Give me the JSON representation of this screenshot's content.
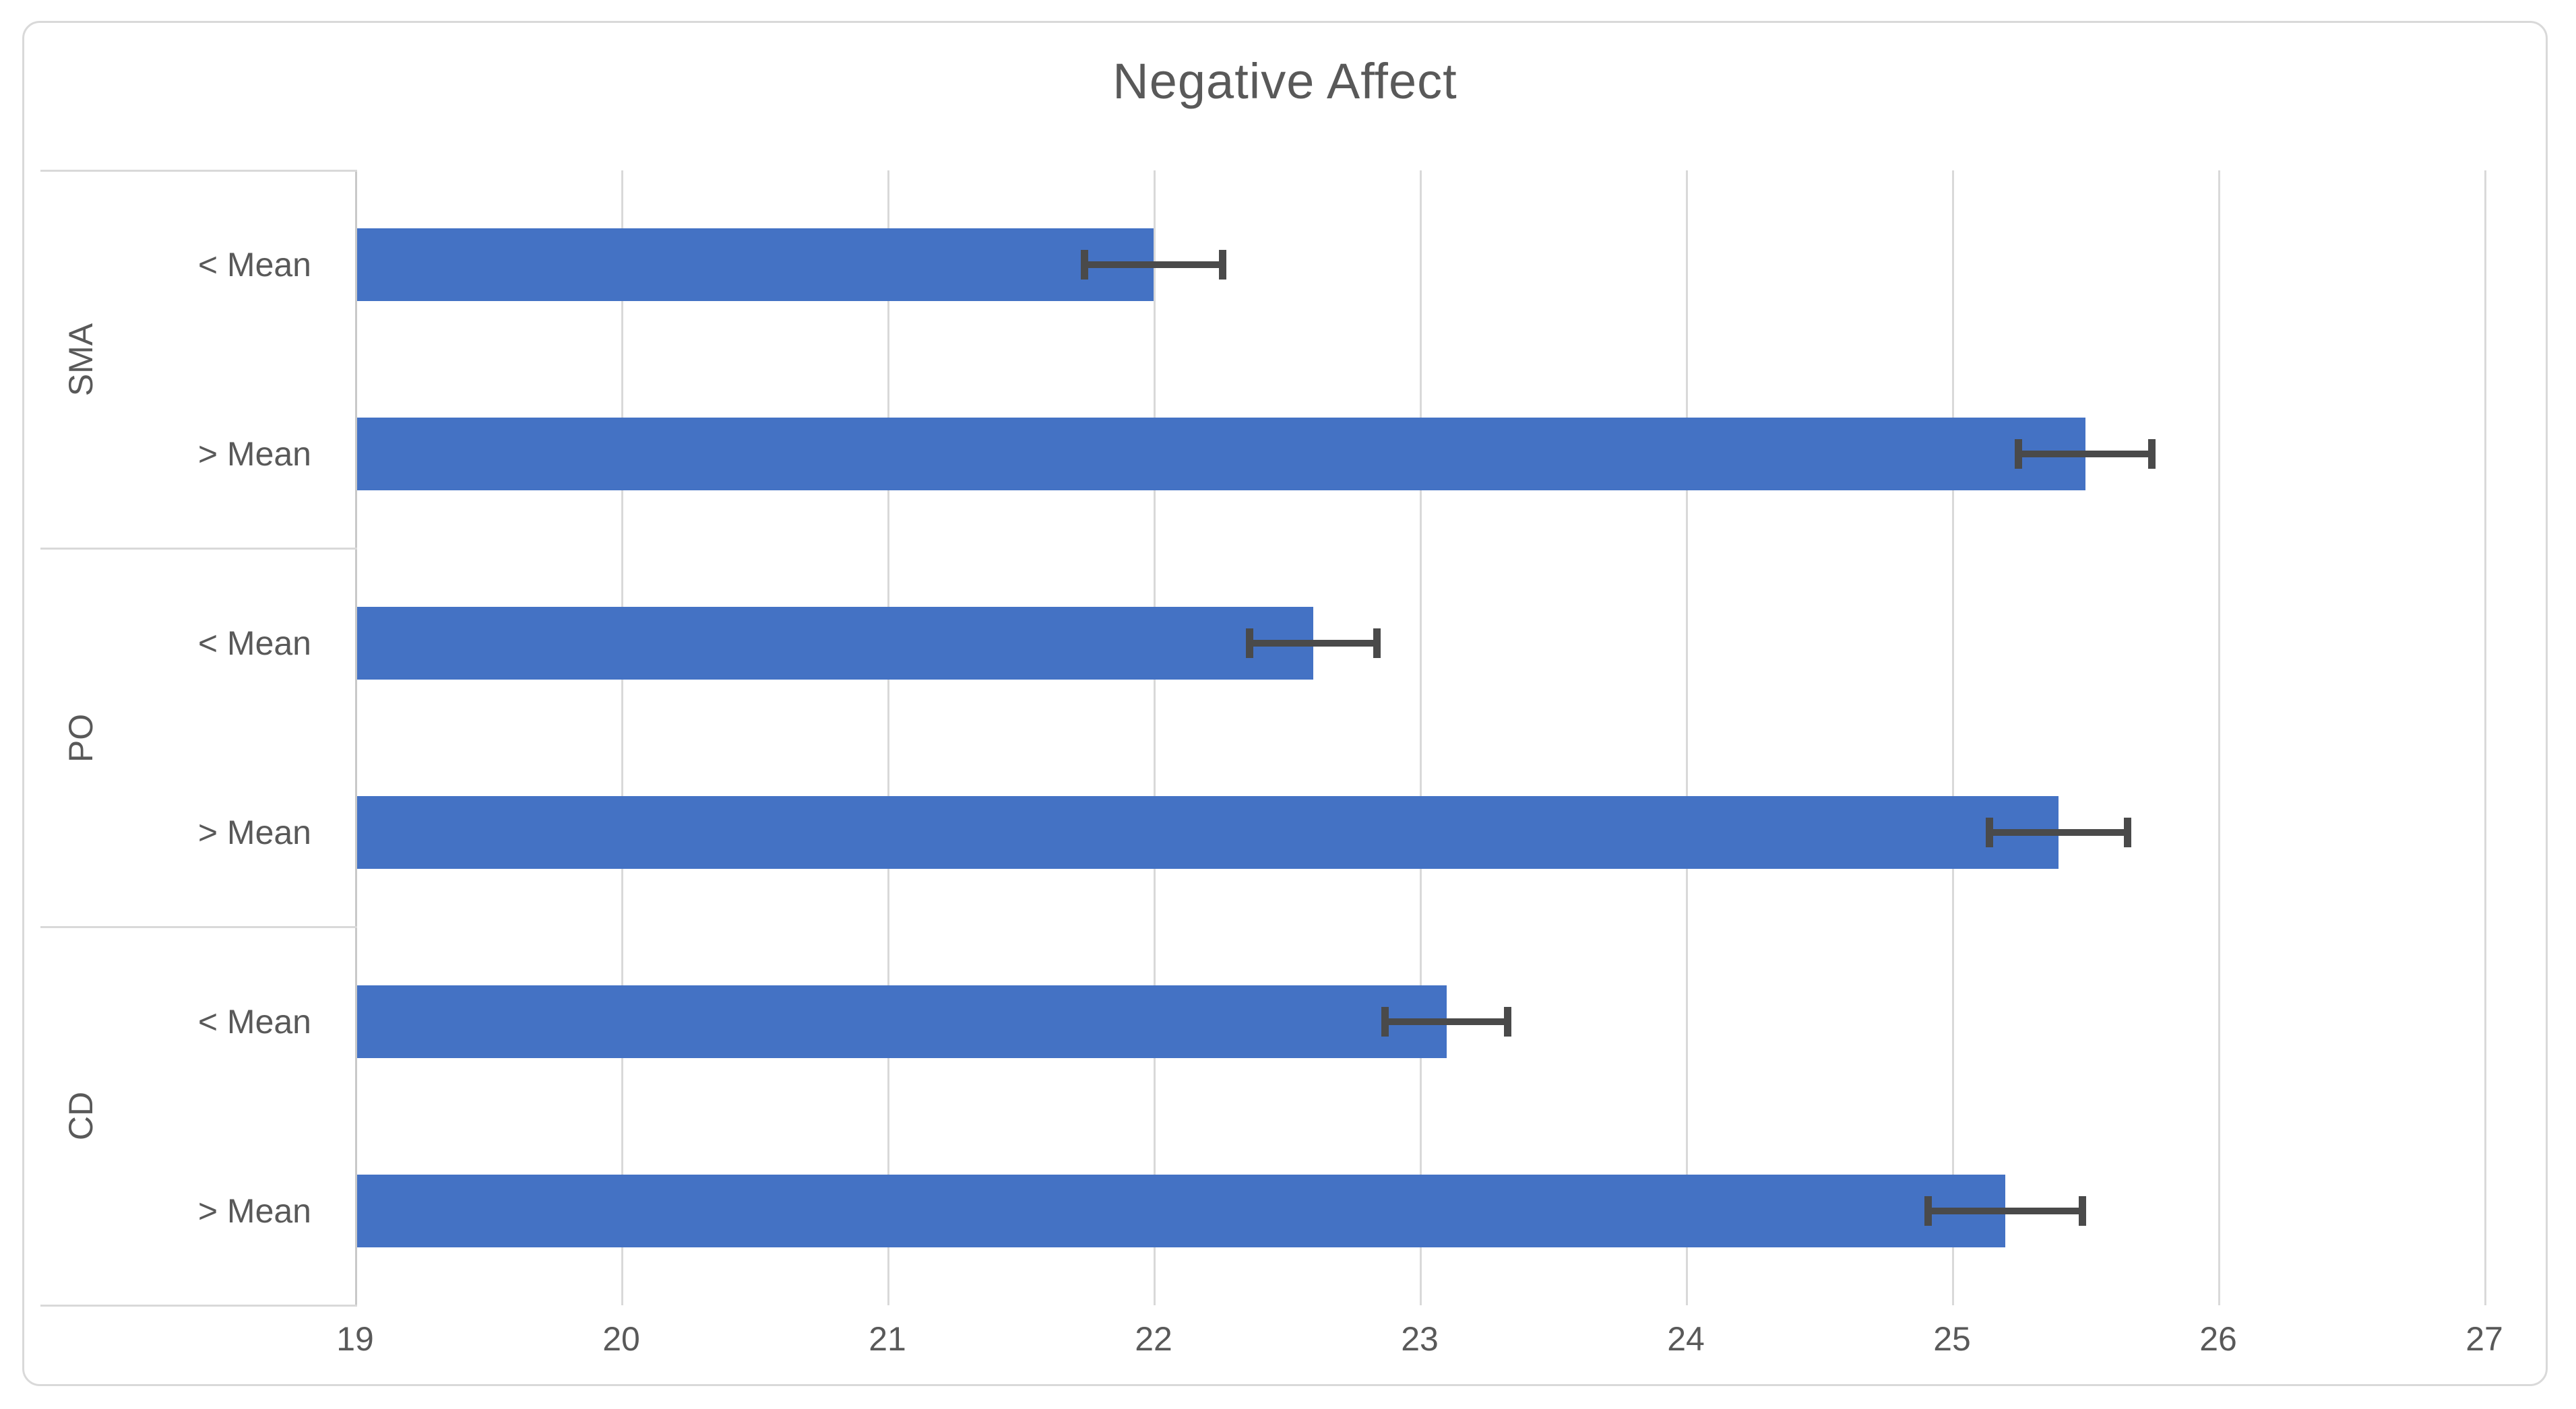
{
  "chart": {
    "title_color": "#595959",
    "text_color": "#595959",
    "bar_color": "#4472c4",
    "error_bar_color": "#4a4a4a",
    "gridline_color": "#d9d9d9",
    "axis_line_color": "#c9c9c9",
    "frame_border_color": "#d9d9d9",
    "background_color": "#ffffff"
  },
  "chart_data": {
    "type": "bar",
    "orientation": "horizontal",
    "title": "Negative Affect",
    "x_axis": {
      "min": 19,
      "max": 27,
      "step": 1,
      "tick_labels": [
        "19",
        "20",
        "21",
        "22",
        "23",
        "24",
        "25",
        "26",
        "27"
      ]
    },
    "grid": "vertical gridlines at each integer tick",
    "legend": "none",
    "error_bars": "symmetric, caps on both ends",
    "groups": [
      {
        "label": "SMA",
        "bars": [
          {
            "label": "< Mean",
            "value": 22.0,
            "error": 0.26
          },
          {
            "label": "> Mean",
            "value": 25.5,
            "error": 0.25
          }
        ]
      },
      {
        "label": "PO",
        "bars": [
          {
            "label": "< Mean",
            "value": 22.6,
            "error": 0.24
          },
          {
            "label": "> Mean",
            "value": 25.4,
            "error": 0.26
          }
        ]
      },
      {
        "label": "CD",
        "bars": [
          {
            "label": "< Mean",
            "value": 23.1,
            "error": 0.23
          },
          {
            "label": "> Mean",
            "value": 25.2,
            "error": 0.29
          }
        ]
      }
    ]
  }
}
